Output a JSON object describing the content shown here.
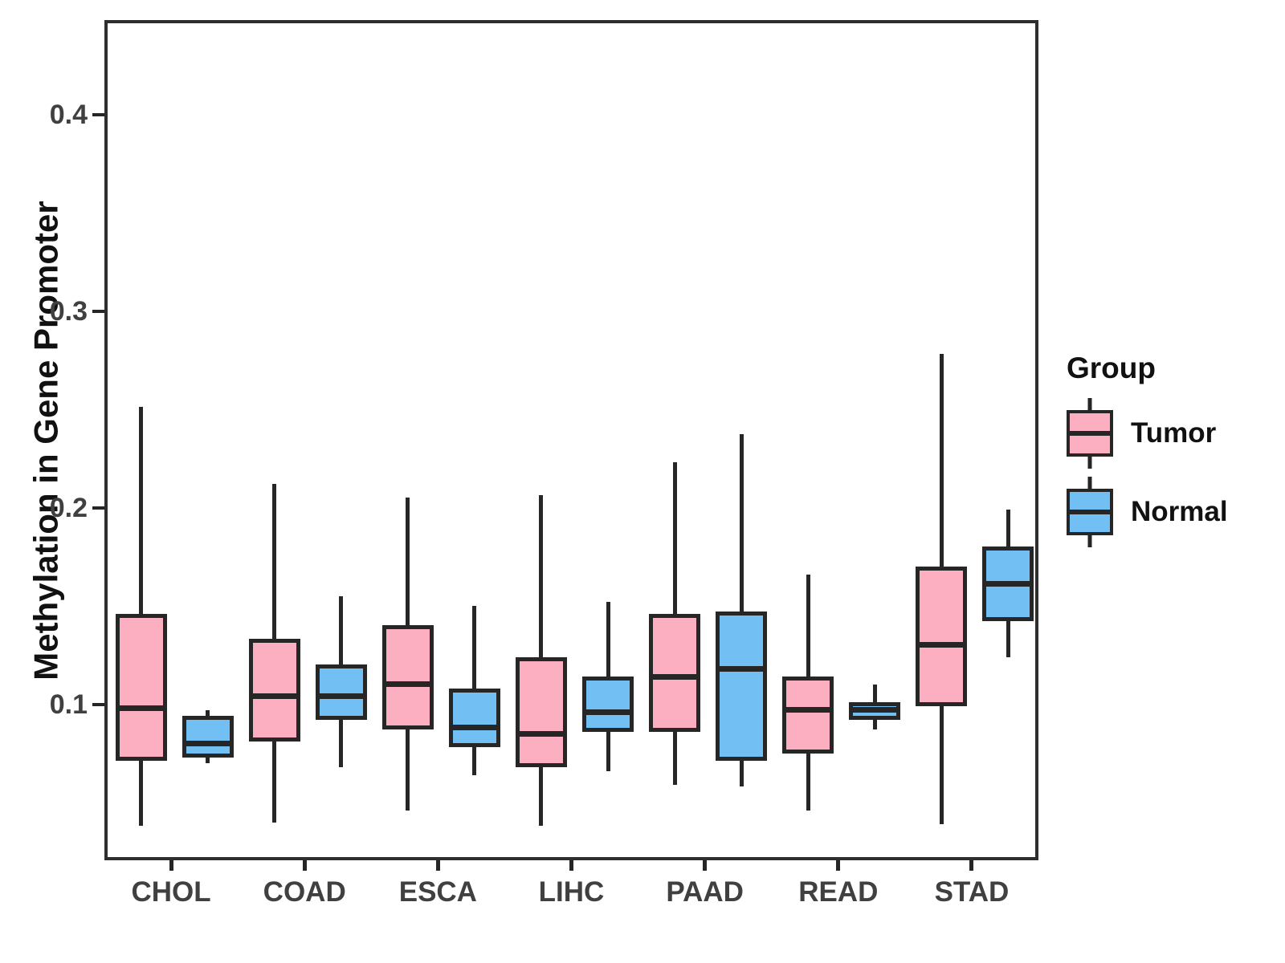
{
  "chart_data": {
    "type": "boxplot",
    "title": "",
    "ylabel": "Methylation in Gene Promoter",
    "xlabel": "",
    "categories": [
      "CHOL",
      "COAD",
      "ESCA",
      "LIHC",
      "PAAD",
      "READ",
      "STAD"
    ],
    "y_tick_labels": [
      "0.1",
      "0.2",
      "0.3",
      "0.4"
    ],
    "y_tick_values": [
      0.1,
      0.2,
      0.3,
      0.4
    ],
    "ylim": [
      0.021,
      0.448
    ],
    "grid": false,
    "legend_position": "right",
    "colors": {
      "tumor_fill": "#FBAFC0",
      "normal_fill": "#72BFF4",
      "line": "#262626",
      "axis_text": "#404040",
      "axis_title": "#111111",
      "panel_border": "#2E2E2E",
      "background": "#FFFFFF"
    },
    "legend": {
      "title": "Group",
      "items": [
        {
          "label": "Tumor",
          "color": "#FBAFC0"
        },
        {
          "label": "Normal",
          "color": "#72BFF4"
        }
      ]
    },
    "series": [
      {
        "name": "Tumor",
        "color": "#FBAFC0",
        "data": [
          {
            "category": "CHOL",
            "whisker_low": 0.04,
            "q1": 0.073,
            "median": 0.1,
            "q3": 0.148,
            "whisker_high": 0.253
          },
          {
            "category": "COAD",
            "whisker_low": 0.042,
            "q1": 0.083,
            "median": 0.106,
            "q3": 0.135,
            "whisker_high": 0.214
          },
          {
            "category": "ESCA",
            "whisker_low": 0.048,
            "q1": 0.089,
            "median": 0.112,
            "q3": 0.142,
            "whisker_high": 0.207
          },
          {
            "category": "LIHC",
            "whisker_low": 0.04,
            "q1": 0.07,
            "median": 0.087,
            "q3": 0.126,
            "whisker_high": 0.208
          },
          {
            "category": "PAAD",
            "whisker_low": 0.061,
            "q1": 0.088,
            "median": 0.116,
            "q3": 0.148,
            "whisker_high": 0.225
          },
          {
            "category": "READ",
            "whisker_low": 0.048,
            "q1": 0.077,
            "median": 0.099,
            "q3": 0.116,
            "whisker_high": 0.168
          },
          {
            "category": "STAD",
            "whisker_low": 0.041,
            "q1": 0.101,
            "median": 0.132,
            "q3": 0.172,
            "whisker_high": 0.28
          }
        ]
      },
      {
        "name": "Normal",
        "color": "#72BFF4",
        "data": [
          {
            "category": "CHOL",
            "whisker_low": 0.072,
            "q1": 0.075,
            "median": 0.082,
            "q3": 0.096,
            "whisker_high": 0.099
          },
          {
            "category": "COAD",
            "whisker_low": 0.07,
            "q1": 0.094,
            "median": 0.106,
            "q3": 0.122,
            "whisker_high": 0.157
          },
          {
            "category": "ESCA",
            "whisker_low": 0.066,
            "q1": 0.08,
            "median": 0.09,
            "q3": 0.11,
            "whisker_high": 0.152
          },
          {
            "category": "LIHC",
            "whisker_low": 0.068,
            "q1": 0.088,
            "median": 0.098,
            "q3": 0.116,
            "whisker_high": 0.154
          },
          {
            "category": "PAAD",
            "whisker_low": 0.06,
            "q1": 0.073,
            "median": 0.12,
            "q3": 0.149,
            "whisker_high": 0.239
          },
          {
            "category": "READ",
            "whisker_low": 0.089,
            "q1": 0.094,
            "median": 0.099,
            "q3": 0.103,
            "whisker_high": 0.112
          },
          {
            "category": "STAD",
            "whisker_low": 0.126,
            "q1": 0.144,
            "median": 0.163,
            "q3": 0.182,
            "whisker_high": 0.201
          }
        ]
      }
    ]
  }
}
